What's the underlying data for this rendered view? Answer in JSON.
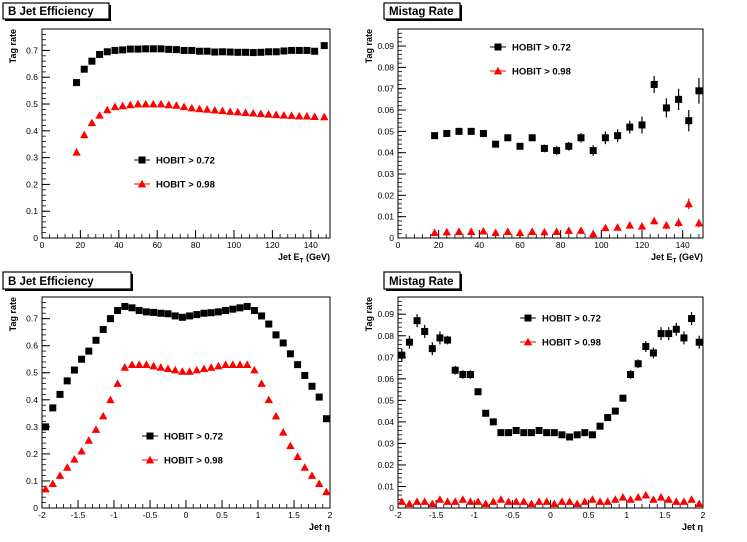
{
  "chart_data": [
    {
      "type": "scatter",
      "title": "B Jet Efficiency",
      "xlabel": "Jet E",
      "xlabel_sub": "T",
      "xlabel_unit": "(GeV)",
      "ylabel": "Tag rate",
      "xlim": [
        0,
        150
      ],
      "ylim": [
        0,
        0.78
      ],
      "x_ticks": [
        0,
        20,
        40,
        60,
        80,
        100,
        120,
        140
      ],
      "y_ticks": [
        0,
        0.1,
        0.2,
        0.3,
        0.4,
        0.5,
        0.6,
        0.7
      ],
      "legend_position": "middle-center",
      "series": [
        {
          "name": "HOBIT > 0.72",
          "marker": "square",
          "color": "#000000",
          "x": [
            18,
            22,
            26,
            30,
            34,
            38,
            42,
            46,
            50,
            54,
            58,
            62,
            66,
            70,
            74,
            78,
            82,
            86,
            90,
            94,
            98,
            102,
            106,
            110,
            114,
            118,
            122,
            126,
            130,
            134,
            138,
            142,
            147
          ],
          "y": [
            0.58,
            0.63,
            0.66,
            0.685,
            0.695,
            0.7,
            0.702,
            0.705,
            0.705,
            0.706,
            0.706,
            0.706,
            0.704,
            0.703,
            0.7,
            0.7,
            0.697,
            0.697,
            0.694,
            0.695,
            0.694,
            0.693,
            0.693,
            0.692,
            0.693,
            0.695,
            0.695,
            0.698,
            0.7,
            0.7,
            0.7,
            0.697,
            0.718
          ]
        },
        {
          "name": "HOBIT > 0.98",
          "marker": "triangle",
          "color": "#ff0000",
          "x": [
            18,
            22,
            26,
            30,
            34,
            38,
            42,
            46,
            50,
            54,
            58,
            62,
            66,
            70,
            74,
            78,
            82,
            86,
            90,
            94,
            98,
            102,
            106,
            110,
            114,
            118,
            122,
            126,
            130,
            134,
            138,
            142,
            147
          ],
          "y": [
            0.32,
            0.385,
            0.43,
            0.458,
            0.478,
            0.49,
            0.493,
            0.497,
            0.5,
            0.5,
            0.5,
            0.5,
            0.497,
            0.495,
            0.49,
            0.485,
            0.482,
            0.48,
            0.477,
            0.475,
            0.472,
            0.47,
            0.468,
            0.466,
            0.464,
            0.462,
            0.46,
            0.458,
            0.457,
            0.455,
            0.455,
            0.453,
            0.452
          ]
        }
      ]
    },
    {
      "type": "scatter",
      "title": "Mistag Rate",
      "xlabel": "Jet E",
      "xlabel_sub": "T",
      "xlabel_unit": "(GeV)",
      "ylabel": "Tag rate",
      "xlim": [
        0,
        150
      ],
      "ylim": [
        0,
        0.098
      ],
      "x_ticks": [
        0,
        20,
        40,
        60,
        80,
        100,
        120,
        140
      ],
      "y_ticks": [
        0,
        0.01,
        0.02,
        0.03,
        0.04,
        0.05,
        0.06,
        0.07,
        0.08,
        0.09
      ],
      "legend_position": "top-left",
      "series": [
        {
          "name": "HOBIT > 0.72",
          "marker": "square",
          "color": "#000000",
          "x": [
            18,
            24,
            30,
            36,
            42,
            48,
            54,
            60,
            66,
            72,
            78,
            84,
            90,
            96,
            102,
            108,
            114,
            120,
            126,
            132,
            138,
            143,
            148
          ],
          "y": [
            0.048,
            0.049,
            0.05,
            0.05,
            0.049,
            0.044,
            0.047,
            0.043,
            0.047,
            0.042,
            0.041,
            0.043,
            0.047,
            0.041,
            0.047,
            0.048,
            0.052,
            0.053,
            0.072,
            0.061,
            0.065,
            0.055,
            0.069
          ],
          "y_err": [
            0.001,
            0.001,
            0.001,
            0.001,
            0.001,
            0.0012,
            0.0012,
            0.0015,
            0.0015,
            0.0018,
            0.002,
            0.002,
            0.0022,
            0.0025,
            0.003,
            0.003,
            0.003,
            0.004,
            0.004,
            0.0045,
            0.005,
            0.005,
            0.006
          ]
        },
        {
          "name": "HOBIT > 0.98",
          "marker": "triangle",
          "color": "#ff0000",
          "x": [
            18,
            24,
            30,
            36,
            42,
            48,
            54,
            60,
            66,
            72,
            78,
            84,
            90,
            96,
            102,
            108,
            114,
            120,
            126,
            132,
            138,
            143,
            148
          ],
          "y": [
            0.0025,
            0.0028,
            0.003,
            0.003,
            0.0032,
            0.0025,
            0.003,
            0.0025,
            0.003,
            0.0028,
            0.003,
            0.0035,
            0.0035,
            0.002,
            0.0048,
            0.005,
            0.006,
            0.0055,
            0.008,
            0.006,
            0.0072,
            0.016,
            0.007
          ],
          "y_err": [
            0.0005,
            0.0005,
            0.0005,
            0.0005,
            0.0005,
            0.0005,
            0.0005,
            0.0006,
            0.0006,
            0.0007,
            0.0008,
            0.0008,
            0.0009,
            0.001,
            0.001,
            0.0012,
            0.0012,
            0.0015,
            0.0015,
            0.0018,
            0.002,
            0.0025,
            0.002
          ]
        }
      ]
    },
    {
      "type": "scatter",
      "title": "B Jet Efficiency",
      "xlabel": "Jet η",
      "ylabel": "Tag rate",
      "xlim": [
        -2,
        2
      ],
      "ylim": [
        0,
        0.78
      ],
      "x_ticks": [
        -2,
        -1.5,
        -1,
        -0.5,
        0,
        0.5,
        1,
        1.5,
        2
      ],
      "x_tick_labels": [
        "-2",
        "-1.5",
        "-1",
        "-0.5",
        "0",
        "0.5",
        "1",
        "1.5",
        "2"
      ],
      "y_ticks": [
        0,
        0.1,
        0.2,
        0.3,
        0.4,
        0.5,
        0.6,
        0.7
      ],
      "legend_position": "middle-center",
      "series": [
        {
          "name": "HOBIT > 0.72",
          "marker": "square",
          "color": "#000000",
          "x": [
            -1.95,
            -1.85,
            -1.75,
            -1.65,
            -1.55,
            -1.45,
            -1.35,
            -1.25,
            -1.15,
            -1.05,
            -0.95,
            -0.85,
            -0.75,
            -0.65,
            -0.55,
            -0.45,
            -0.35,
            -0.25,
            -0.15,
            -0.05,
            0.05,
            0.15,
            0.25,
            0.35,
            0.45,
            0.55,
            0.65,
            0.75,
            0.85,
            0.95,
            1.05,
            1.15,
            1.25,
            1.35,
            1.45,
            1.55,
            1.65,
            1.75,
            1.85,
            1.95
          ],
          "y": [
            0.3,
            0.37,
            0.42,
            0.47,
            0.51,
            0.55,
            0.58,
            0.62,
            0.66,
            0.7,
            0.73,
            0.745,
            0.74,
            0.73,
            0.725,
            0.723,
            0.72,
            0.718,
            0.71,
            0.705,
            0.71,
            0.715,
            0.72,
            0.722,
            0.725,
            0.73,
            0.735,
            0.74,
            0.745,
            0.73,
            0.71,
            0.68,
            0.64,
            0.61,
            0.57,
            0.53,
            0.49,
            0.45,
            0.41,
            0.33
          ]
        },
        {
          "name": "HOBIT > 0.98",
          "marker": "triangle",
          "color": "#ff0000",
          "x": [
            -1.95,
            -1.85,
            -1.75,
            -1.65,
            -1.55,
            -1.45,
            -1.35,
            -1.25,
            -1.15,
            -1.05,
            -0.95,
            -0.85,
            -0.75,
            -0.65,
            -0.55,
            -0.45,
            -0.35,
            -0.25,
            -0.15,
            -0.05,
            0.05,
            0.15,
            0.25,
            0.35,
            0.45,
            0.55,
            0.65,
            0.75,
            0.85,
            0.95,
            1.05,
            1.15,
            1.25,
            1.35,
            1.45,
            1.55,
            1.65,
            1.75,
            1.85,
            1.95
          ],
          "y": [
            0.07,
            0.09,
            0.12,
            0.15,
            0.18,
            0.21,
            0.25,
            0.29,
            0.34,
            0.4,
            0.46,
            0.52,
            0.53,
            0.53,
            0.53,
            0.525,
            0.52,
            0.515,
            0.51,
            0.505,
            0.505,
            0.51,
            0.515,
            0.52,
            0.525,
            0.53,
            0.53,
            0.53,
            0.53,
            0.51,
            0.46,
            0.4,
            0.34,
            0.28,
            0.23,
            0.19,
            0.15,
            0.12,
            0.09,
            0.06
          ]
        }
      ]
    },
    {
      "type": "scatter",
      "title": "Mistag Rate",
      "xlabel": "Jet η",
      "ylabel": "Tag rate",
      "xlim": [
        -2,
        2
      ],
      "ylim": [
        0,
        0.098
      ],
      "x_ticks": [
        -2,
        -1.5,
        -1,
        -0.5,
        0,
        0.5,
        1,
        1.5,
        2
      ],
      "x_tick_labels": [
        "-2",
        "-1.5",
        "-1",
        "-0.5",
        "0",
        "0.5",
        "1",
        "1.5",
        "2"
      ],
      "y_ticks": [
        0,
        0.01,
        0.02,
        0.03,
        0.04,
        0.05,
        0.06,
        0.07,
        0.08,
        0.09
      ],
      "legend_position": "top-center",
      "series": [
        {
          "name": "HOBIT > 0.72",
          "marker": "square",
          "color": "#000000",
          "x": [
            -1.95,
            -1.85,
            -1.75,
            -1.65,
            -1.55,
            -1.45,
            -1.35,
            -1.25,
            -1.15,
            -1.05,
            -0.95,
            -0.85,
            -0.75,
            -0.65,
            -0.55,
            -0.45,
            -0.35,
            -0.25,
            -0.15,
            -0.05,
            0.05,
            0.15,
            0.25,
            0.35,
            0.45,
            0.55,
            0.65,
            0.75,
            0.85,
            0.95,
            1.05,
            1.15,
            1.25,
            1.35,
            1.45,
            1.55,
            1.65,
            1.75,
            1.85,
            1.95
          ],
          "y": [
            0.071,
            0.077,
            0.087,
            0.082,
            0.074,
            0.079,
            0.078,
            0.064,
            0.062,
            0.062,
            0.054,
            0.044,
            0.04,
            0.035,
            0.035,
            0.036,
            0.035,
            0.035,
            0.036,
            0.035,
            0.035,
            0.034,
            0.033,
            0.034,
            0.035,
            0.034,
            0.038,
            0.042,
            0.045,
            0.051,
            0.062,
            0.067,
            0.075,
            0.072,
            0.081,
            0.081,
            0.083,
            0.079,
            0.088,
            0.077
          ],
          "y_err": [
            0.003,
            0.003,
            0.003,
            0.003,
            0.003,
            0.003,
            0.002,
            0.002,
            0.002,
            0.002,
            0.0015,
            0.0012,
            0.001,
            0.001,
            0.001,
            0.001,
            0.001,
            0.001,
            0.001,
            0.001,
            0.001,
            0.001,
            0.001,
            0.001,
            0.001,
            0.001,
            0.001,
            0.001,
            0.0012,
            0.0015,
            0.002,
            0.002,
            0.0025,
            0.0025,
            0.003,
            0.003,
            0.003,
            0.003,
            0.003,
            0.003
          ]
        },
        {
          "name": "HOBIT > 0.98",
          "marker": "triangle",
          "color": "#ff0000",
          "x": [
            -1.95,
            -1.85,
            -1.75,
            -1.65,
            -1.55,
            -1.45,
            -1.35,
            -1.25,
            -1.15,
            -1.05,
            -0.95,
            -0.85,
            -0.75,
            -0.65,
            -0.55,
            -0.45,
            -0.35,
            -0.25,
            -0.15,
            -0.05,
            0.05,
            0.15,
            0.25,
            0.35,
            0.45,
            0.55,
            0.65,
            0.75,
            0.85,
            0.95,
            1.05,
            1.15,
            1.25,
            1.35,
            1.45,
            1.55,
            1.65,
            1.75,
            1.85,
            1.95
          ],
          "y": [
            0.003,
            0.002,
            0.003,
            0.003,
            0.002,
            0.004,
            0.003,
            0.003,
            0.004,
            0.003,
            0.003,
            0.002,
            0.003,
            0.004,
            0.003,
            0.003,
            0.003,
            0.002,
            0.003,
            0.003,
            0.002,
            0.003,
            0.003,
            0.002,
            0.003,
            0.004,
            0.003,
            0.003,
            0.004,
            0.005,
            0.004,
            0.005,
            0.006,
            0.004,
            0.005,
            0.004,
            0.003,
            0.003,
            0.004,
            0.002
          ],
          "y_err": [
            0.0008,
            0.0008,
            0.0008,
            0.0008,
            0.0008,
            0.0008,
            0.0007,
            0.0007,
            0.0007,
            0.0007,
            0.0006,
            0.0006,
            0.0005,
            0.0005,
            0.0005,
            0.0005,
            0.0005,
            0.0005,
            0.0005,
            0.0005,
            0.0005,
            0.0005,
            0.0005,
            0.0005,
            0.0005,
            0.0005,
            0.0005,
            0.0006,
            0.0006,
            0.0007,
            0.0007,
            0.0008,
            0.0008,
            0.0008,
            0.0008,
            0.0008,
            0.0008,
            0.0008,
            0.0008,
            0.0008
          ]
        }
      ]
    }
  ]
}
